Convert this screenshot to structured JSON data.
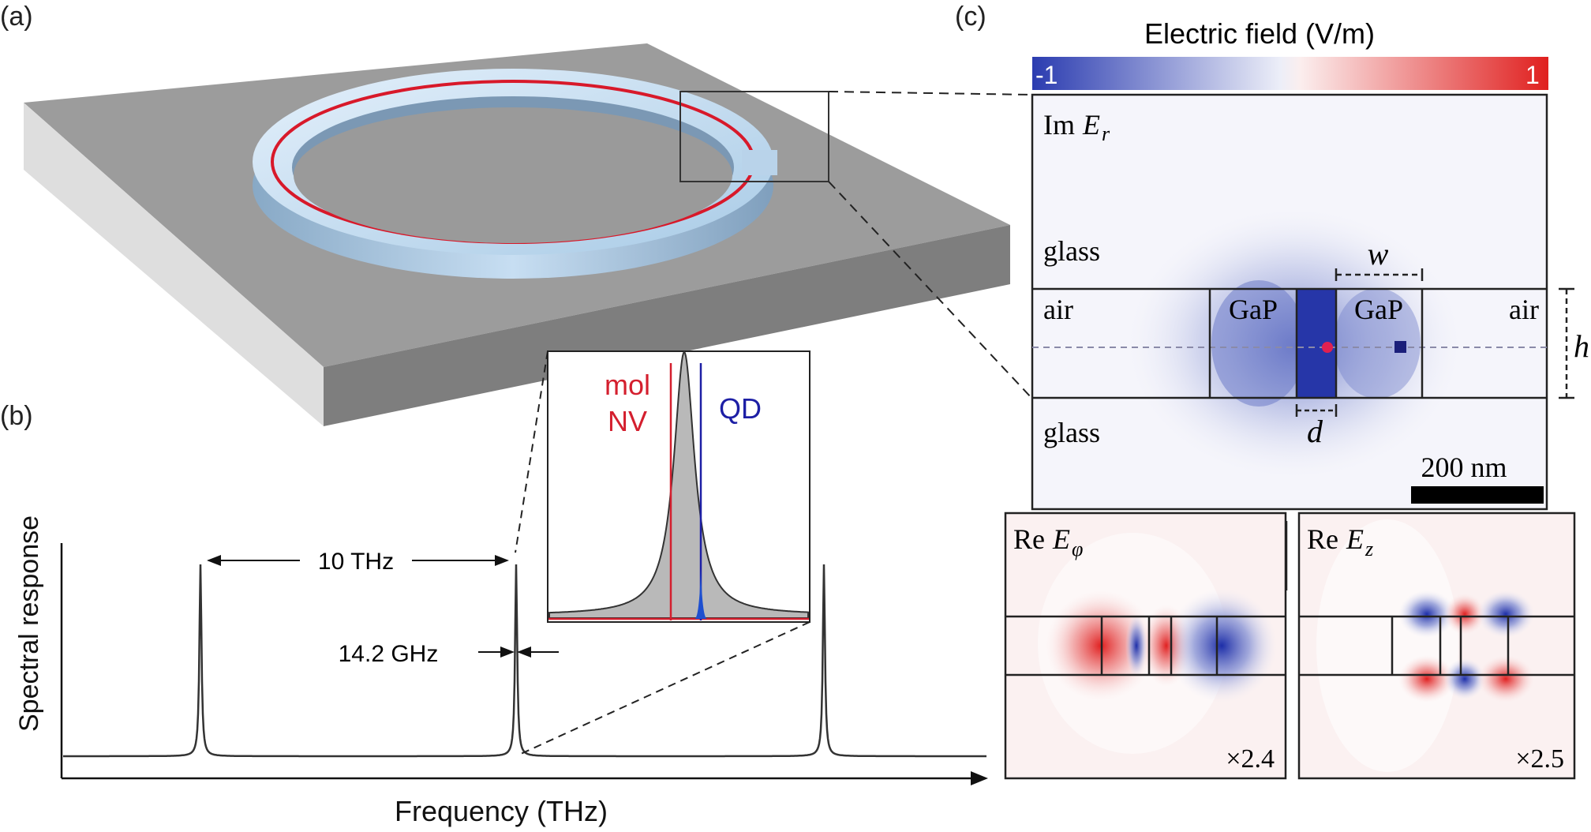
{
  "panels": {
    "a": {
      "label": "(a)"
    },
    "b": {
      "label": "(b)",
      "ylabel": "Spectral response",
      "xlabel": "Frequency (THz)",
      "fsr_annotation": "10 THz",
      "linewidth_annotation": "14.2 GHz",
      "inset": {
        "mol_label": "mol",
        "nv_label": "NV",
        "qd_label": "QD",
        "colors": {
          "mol_nv": "#d41f2e",
          "qd": "#1d1fa5",
          "peak_fill": "#b9b9b9"
        }
      }
    },
    "c": {
      "label": "(c)",
      "colorbar": {
        "title": "Electric field (V/m)",
        "min_label": "-1",
        "max_label": "1",
        "neg_color": "#2b3cb0",
        "pos_color": "#e0201f"
      },
      "main": {
        "component_prefix": "Im",
        "component_symbol": "E",
        "component_subscript": "r",
        "glass_top": "glass",
        "glass_bottom": "glass",
        "air_left": "air",
        "air_right": "air",
        "gap_left": "GaP",
        "gap_right": "GaP",
        "w_label": "w",
        "h_label": "h",
        "d_label": "d",
        "scalebar_label": "200 nm",
        "markers": {
          "circle_color": "#e02050",
          "square_color": "#1b1f7a"
        }
      },
      "sub_phi": {
        "prefix": "Re",
        "symbol": "E",
        "subscript": "φ",
        "scale": "×2.4"
      },
      "sub_z": {
        "prefix": "Re",
        "symbol": "E",
        "subscript": "z",
        "scale": "×2.5"
      }
    }
  },
  "chart_data": {
    "type": "line",
    "title": "",
    "xlabel": "Frequency (THz)",
    "ylabel": "Spectral response",
    "peaks_annotation": {
      "spacing": "10 THz",
      "linewidth": "14.2 GHz"
    },
    "series": [
      {
        "values": [
          0.06,
          1.0,
          0.06,
          1.0,
          0.06,
          1.0,
          0.06
        ]
      }
    ]
  }
}
